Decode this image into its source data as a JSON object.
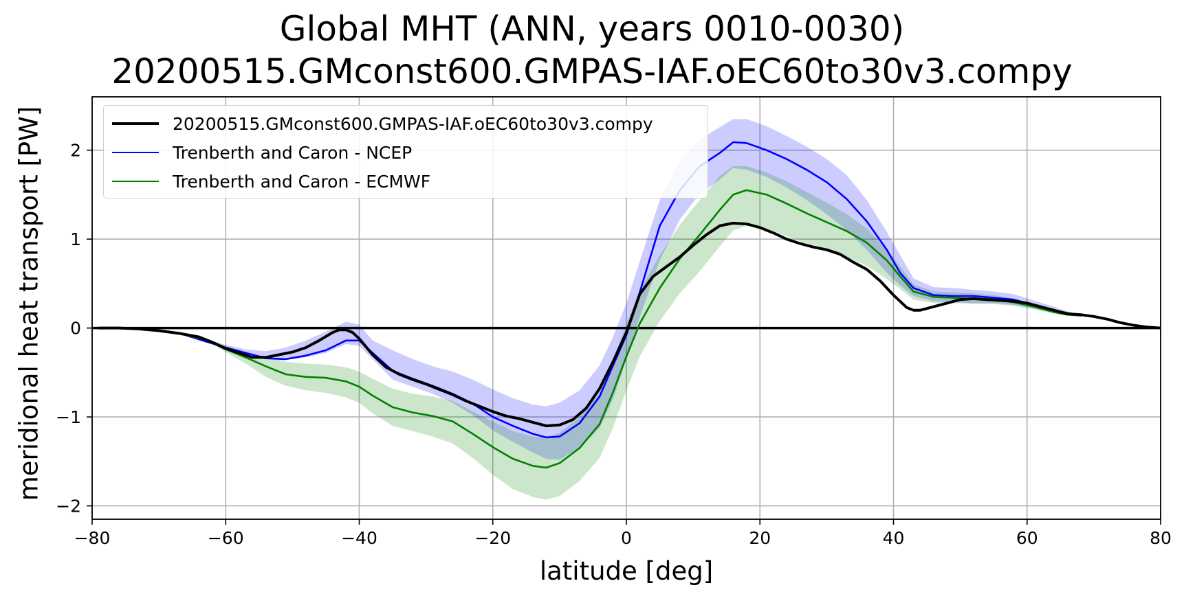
{
  "title_line1": "Global MHT (ANN, years 0010-0030)",
  "title_line2": "20200515.GMconst600.GMPAS-IAF.oEC60to30v3.compy",
  "chart_data": {
    "type": "line",
    "title": "Global MHT (ANN, years 0010-0030)",
    "subtitle": "20200515.GMconst600.GMPAS-IAF.oEC60to30v3.compy",
    "xlabel": "latitude [deg]",
    "ylabel": "meridional heat transport [PW]",
    "xlim": [
      -80,
      80
    ],
    "ylim": [
      -2.15,
      2.6
    ],
    "xticks": [
      -80,
      -60,
      -40,
      -20,
      0,
      20,
      40,
      60,
      80
    ],
    "xtick_labels": [
      "−80",
      "−60",
      "−40",
      "−20",
      "0",
      "20",
      "40",
      "60",
      "80"
    ],
    "yticks": [
      -2,
      -1,
      0,
      1,
      2
    ],
    "ytick_labels": [
      "−2",
      "−1",
      "0",
      "1",
      "2"
    ],
    "grid": true,
    "legend_position": "upper-left",
    "zero_line": true,
    "series": [
      {
        "name": "20200515.GMconst600.GMPAS-IAF.oEC60to30v3.compy",
        "color": "#000000",
        "x": [
          -79,
          -76,
          -73,
          -70,
          -67,
          -64,
          -62,
          -60,
          -58,
          -56,
          -54,
          -52,
          -50,
          -48,
          -46,
          -44,
          -43,
          -42,
          -41,
          -40,
          -38,
          -36,
          -34,
          -32,
          -30,
          -28,
          -26,
          -24,
          -22,
          -20,
          -18,
          -16,
          -14,
          -12,
          -10,
          -8,
          -6,
          -4,
          -2,
          0,
          2,
          4,
          6,
          8,
          10,
          12,
          14,
          16,
          18,
          20,
          22,
          24,
          26,
          28,
          30,
          32,
          34,
          36,
          38,
          40,
          42,
          43,
          44,
          46,
          48,
          50,
          52,
          54,
          56,
          58,
          60,
          62,
          64,
          66,
          68,
          70,
          72,
          74,
          76,
          78,
          80
        ],
        "y": [
          0,
          0,
          -0.01,
          -0.03,
          -0.06,
          -0.1,
          -0.16,
          -0.23,
          -0.28,
          -0.33,
          -0.33,
          -0.3,
          -0.27,
          -0.22,
          -0.14,
          -0.05,
          -0.02,
          -0.02,
          -0.05,
          -0.12,
          -0.3,
          -0.44,
          -0.52,
          -0.58,
          -0.63,
          -0.69,
          -0.75,
          -0.82,
          -0.88,
          -0.94,
          -0.99,
          -1.02,
          -1.06,
          -1.1,
          -1.09,
          -1.03,
          -0.9,
          -0.68,
          -0.38,
          -0.05,
          0.38,
          0.58,
          0.69,
          0.8,
          0.93,
          1.05,
          1.15,
          1.18,
          1.17,
          1.13,
          1.07,
          1.0,
          0.95,
          0.91,
          0.88,
          0.83,
          0.74,
          0.66,
          0.53,
          0.37,
          0.23,
          0.2,
          0.2,
          0.24,
          0.28,
          0.32,
          0.33,
          0.32,
          0.31,
          0.3,
          0.28,
          0.24,
          0.2,
          0.16,
          0.15,
          0.13,
          0.1,
          0.06,
          0.03,
          0.01,
          0
        ],
        "band": null
      },
      {
        "name": "Trenberth and Caron - NCEP",
        "color": "#0000ff",
        "x": [
          -66,
          -63,
          -60,
          -57,
          -54,
          -51,
          -48,
          -45,
          -42,
          -40,
          -38,
          -35,
          -32,
          -29,
          -26,
          -23,
          -20,
          -17,
          -14,
          -12,
          -10,
          -7,
          -4,
          -2,
          0,
          2,
          5,
          8,
          11,
          14,
          16,
          18,
          21,
          24,
          27,
          30,
          33,
          36,
          39,
          41,
          43,
          46,
          49,
          52,
          55,
          58,
          61,
          64,
          66,
          68
        ],
        "y": [
          -0.08,
          -0.15,
          -0.22,
          -0.28,
          -0.34,
          -0.35,
          -0.31,
          -0.25,
          -0.14,
          -0.14,
          -0.28,
          -0.48,
          -0.57,
          -0.65,
          -0.74,
          -0.85,
          -1.0,
          -1.1,
          -1.19,
          -1.23,
          -1.22,
          -1.07,
          -0.77,
          -0.42,
          -0.08,
          0.4,
          1.15,
          1.55,
          1.82,
          1.97,
          2.09,
          2.08,
          2.0,
          1.9,
          1.78,
          1.64,
          1.45,
          1.2,
          0.88,
          0.62,
          0.45,
          0.37,
          0.36,
          0.36,
          0.34,
          0.32,
          0.26,
          0.2,
          0.17,
          0.14
        ],
        "lower": [
          -0.08,
          -0.15,
          -0.22,
          -0.3,
          -0.35,
          -0.36,
          -0.33,
          -0.28,
          -0.18,
          -0.2,
          -0.35,
          -0.58,
          -0.66,
          -0.74,
          -0.84,
          -0.98,
          -1.15,
          -1.28,
          -1.4,
          -1.47,
          -1.48,
          -1.35,
          -1.12,
          -0.8,
          -0.34,
          0.12,
          0.76,
          1.22,
          1.51,
          1.67,
          1.8,
          1.78,
          1.7,
          1.58,
          1.44,
          1.28,
          1.1,
          0.88,
          0.62,
          0.48,
          0.36,
          0.3,
          0.29,
          0.28,
          0.28,
          0.26,
          0.22,
          0.17,
          0.15,
          0.14
        ],
        "upper": [
          -0.07,
          -0.12,
          -0.19,
          -0.24,
          -0.26,
          -0.22,
          -0.14,
          -0.04,
          0.07,
          0.04,
          -0.14,
          -0.25,
          -0.35,
          -0.43,
          -0.49,
          -0.58,
          -0.69,
          -0.79,
          -0.86,
          -0.88,
          -0.84,
          -0.7,
          -0.42,
          -0.1,
          0.28,
          0.75,
          1.44,
          1.87,
          2.12,
          2.26,
          2.35,
          2.35,
          2.27,
          2.16,
          2.04,
          1.9,
          1.72,
          1.44,
          1.08,
          0.82,
          0.56,
          0.46,
          0.45,
          0.43,
          0.41,
          0.38,
          0.31,
          0.24,
          0.19,
          0.15
        ]
      },
      {
        "name": "Trenberth and Caron - ECMWF",
        "color": "#008000",
        "x": [
          -66,
          -63,
          -60,
          -57,
          -54,
          -51,
          -48,
          -45,
          -42,
          -40,
          -38,
          -35,
          -32,
          -29,
          -26,
          -23,
          -20,
          -17,
          -14,
          -12,
          -10,
          -7,
          -4,
          -2,
          0,
          2,
          5,
          8,
          11,
          14,
          16,
          18,
          21,
          24,
          27,
          30,
          33,
          36,
          39,
          41,
          43,
          46,
          49,
          52,
          55,
          58,
          61,
          64,
          66,
          68
        ],
        "y": [
          -0.08,
          -0.13,
          -0.24,
          -0.33,
          -0.43,
          -0.52,
          -0.55,
          -0.56,
          -0.6,
          -0.66,
          -0.76,
          -0.89,
          -0.95,
          -0.99,
          -1.05,
          -1.19,
          -1.34,
          -1.47,
          -1.55,
          -1.57,
          -1.52,
          -1.35,
          -1.08,
          -0.72,
          -0.32,
          0.05,
          0.45,
          0.78,
          1.05,
          1.33,
          1.5,
          1.55,
          1.5,
          1.4,
          1.29,
          1.19,
          1.09,
          0.96,
          0.76,
          0.58,
          0.41,
          0.35,
          0.34,
          0.33,
          0.32,
          0.29,
          0.24,
          0.18,
          0.15,
          0.14
        ],
        "lower": [
          -0.08,
          -0.14,
          -0.27,
          -0.4,
          -0.55,
          -0.65,
          -0.7,
          -0.73,
          -0.78,
          -0.84,
          -0.96,
          -1.1,
          -1.16,
          -1.22,
          -1.3,
          -1.46,
          -1.65,
          -1.81,
          -1.9,
          -1.93,
          -1.89,
          -1.72,
          -1.46,
          -1.12,
          -0.7,
          -0.32,
          0.08,
          0.39,
          0.64,
          0.92,
          1.1,
          1.15,
          1.12,
          1.03,
          0.95,
          0.87,
          0.8,
          0.7,
          0.55,
          0.44,
          0.32,
          0.28,
          0.28,
          0.27,
          0.27,
          0.25,
          0.21,
          0.16,
          0.14,
          0.13
        ],
        "upper": [
          -0.07,
          -0.12,
          -0.2,
          -0.27,
          -0.32,
          -0.38,
          -0.4,
          -0.41,
          -0.44,
          -0.49,
          -0.57,
          -0.68,
          -0.74,
          -0.77,
          -0.82,
          -0.94,
          -1.05,
          -1.16,
          -1.22,
          -1.23,
          -1.18,
          -1.0,
          -0.73,
          -0.36,
          0.05,
          0.42,
          0.82,
          1.16,
          1.44,
          1.71,
          1.82,
          1.82,
          1.75,
          1.65,
          1.53,
          1.41,
          1.28,
          1.12,
          0.88,
          0.69,
          0.49,
          0.41,
          0.4,
          0.39,
          0.37,
          0.33,
          0.27,
          0.21,
          0.16,
          0.15
        ]
      }
    ]
  }
}
